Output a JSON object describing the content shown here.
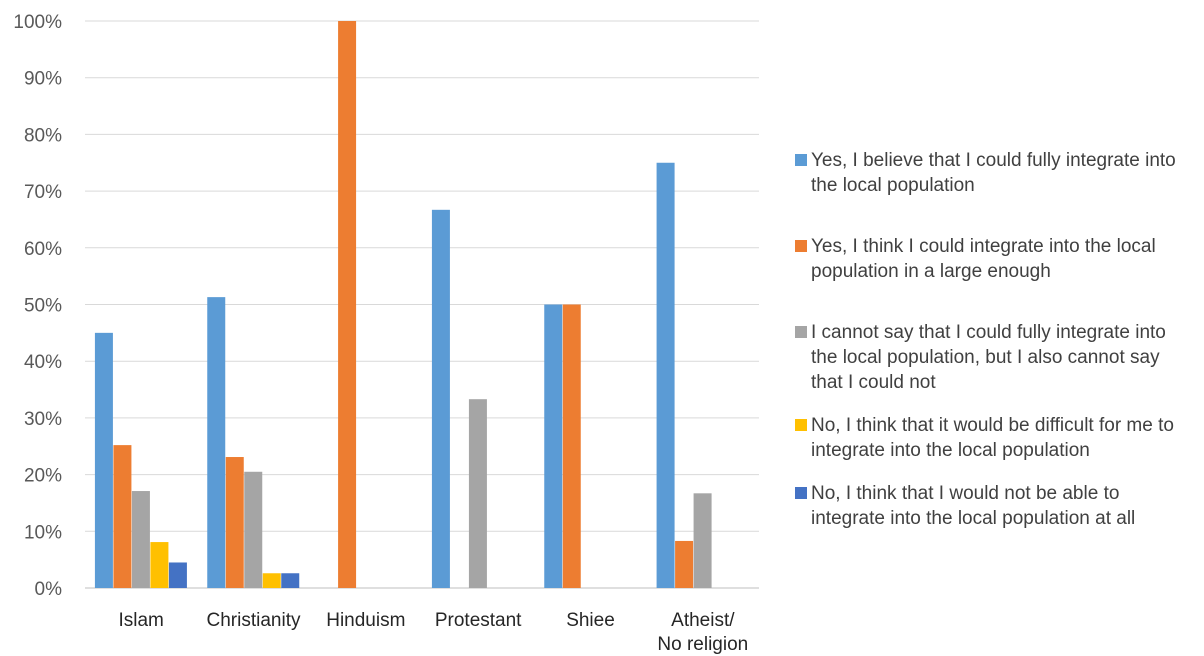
{
  "chart_data": {
    "type": "bar",
    "categories": [
      "Islam",
      "Christianity",
      "Hinduism",
      "Protestant",
      "Shiee",
      "Atheist/|No religion"
    ],
    "yticks": [
      "0%",
      "10%",
      "20%",
      "30%",
      "40%",
      "50%",
      "60%",
      "70%",
      "80%",
      "90%",
      "100%"
    ],
    "ylim": [
      0,
      100
    ],
    "grid": true,
    "legend_position": "right",
    "series": [
      {
        "name": "Yes, I believe that I could fully integrate into the local population",
        "color": "#5B9BD5",
        "values": [
          45,
          51.3,
          0,
          66.7,
          50,
          75
        ]
      },
      {
        "name": "Yes, I think I could integrate into the local population in a large enough",
        "color": "#ED7D31",
        "values": [
          25.2,
          23.1,
          100,
          0,
          50,
          8.3
        ]
      },
      {
        "name": "I cannot say that I could fully integrate into the local population, but I also cannot say that I could not",
        "color": "#A5A5A5",
        "values": [
          17.1,
          20.5,
          0,
          33.3,
          0,
          16.7
        ]
      },
      {
        "name": "No, I think that it would be difficult for me to integrate into the local population",
        "color": "#FFC000",
        "values": [
          8.1,
          2.6,
          0,
          0,
          0,
          0
        ]
      },
      {
        "name": "No, I think that I would not be able to integrate into the local population at all",
        "color": "#4472C4",
        "values": [
          4.5,
          2.6,
          0,
          0,
          0,
          0
        ]
      }
    ]
  }
}
